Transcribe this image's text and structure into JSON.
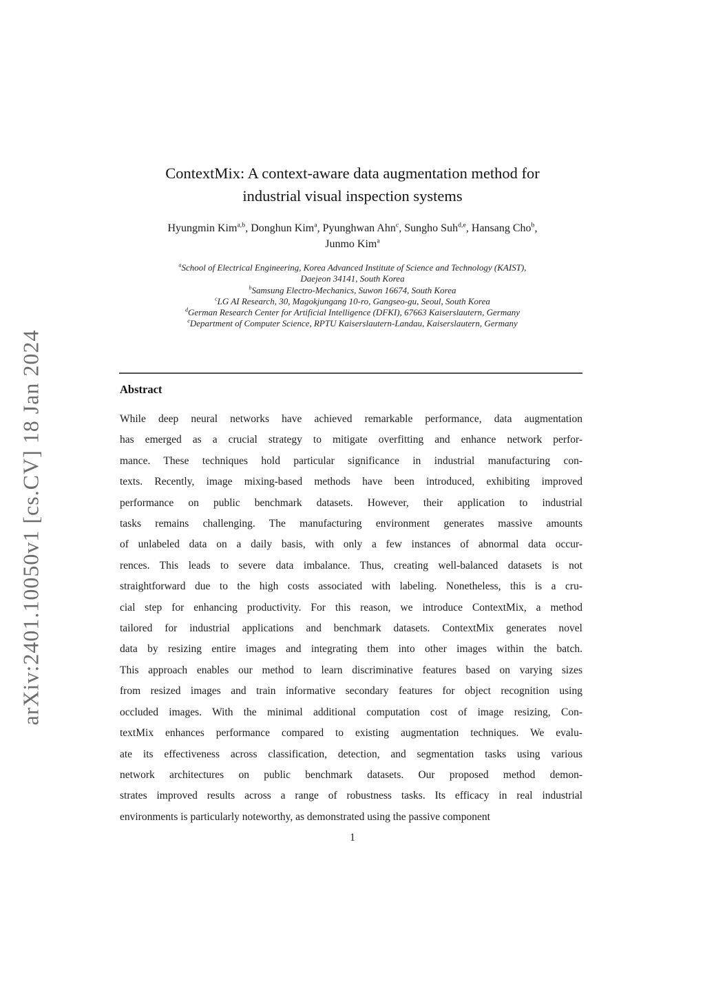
{
  "arxiv_watermark": "arXiv:2401.10050v1 [cs.CV] 18 Jan 2024",
  "title": {
    "line1": "ContextMix: A context-aware data augmentation method for",
    "line2": "industrial visual inspection systems"
  },
  "authors": {
    "line1": [
      {
        "text": "Hyungmin Kim",
        "sup": "a,b"
      },
      {
        "text": ", Donghun Kim",
        "sup": "a"
      },
      {
        "text": ", Pyunghwan Ahn",
        "sup": "c"
      },
      {
        "text": ", Sungho Suh",
        "sup": "d,e"
      },
      {
        "text": ", Hansang Cho",
        "sup": "b"
      },
      {
        "text": ",",
        "sup": ""
      }
    ],
    "line2": [
      {
        "text": "Junmo Kim",
        "sup": "a"
      }
    ]
  },
  "affiliations": [
    {
      "sup": "a",
      "text": "School of Electrical Engineering, Korea Advanced Institute of Science and Technology (KAIST),"
    },
    {
      "sup": "",
      "text": "Daejeon 34141, South Korea"
    },
    {
      "sup": "b",
      "text": "Samsung Electro-Mechanics, Suwon 16674, South Korea"
    },
    {
      "sup": "c",
      "text": "LG AI Research, 30, Magokjungang 10-ro, Gangseo-gu, Seoul, South Korea"
    },
    {
      "sup": "d",
      "text": "German Research Center for Artificial Intelligence (DFKI), 67663 Kaiserslautern, Germany"
    },
    {
      "sup": "e",
      "text": "Department of Computer Science, RPTU Kaiserslautern-Landau, Kaiserslautern, Germany"
    }
  ],
  "abstract": {
    "heading": "Abstract",
    "lines": [
      "While deep neural networks have achieved remarkable performance, data augmentation",
      "has emerged as a crucial strategy to mitigate overfitting and enhance network perfor-",
      "mance.  These techniques hold particular significance in industrial manufacturing con-",
      "texts. Recently, image mixing-based methods have been introduced, exhibiting improved",
      "performance on public benchmark datasets.  However, their application to industrial",
      "tasks remains challenging. The manufacturing environment generates massive amounts",
      "of unlabeled data on a daily basis, with only a few instances of abnormal data occur-",
      "rences. This leads to severe data imbalance. Thus, creating well-balanced datasets is not",
      "straightforward due to the high costs associated with labeling. Nonetheless, this is a cru-",
      "cial step for enhancing productivity. For this reason, we introduce ContextMix, a method",
      "tailored for industrial applications and benchmark datasets.  ContextMix generates novel",
      "data by resizing entire images and integrating them into other images within the batch.",
      "This approach enables our method to learn discriminative features based on varying sizes",
      "from resized images and train informative secondary features for object recognition using",
      "occluded images.  With the minimal additional computation cost of image resizing, Con-",
      "textMix enhances performance compared to existing augmentation techniques.  We evalu-",
      "ate its effectiveness across classification, detection, and segmentation tasks using various",
      "network architectures on public benchmark datasets.   Our proposed method demon-",
      "strates improved results across a range of robustness tasks.  Its efficacy in real industrial",
      "environments is particularly noteworthy, as demonstrated using the passive component"
    ]
  },
  "page_number": "1",
  "colors": {
    "body_text": "#1a1a1a",
    "watermark": "#6d6d6d",
    "rule": "#4f4f4f"
  }
}
